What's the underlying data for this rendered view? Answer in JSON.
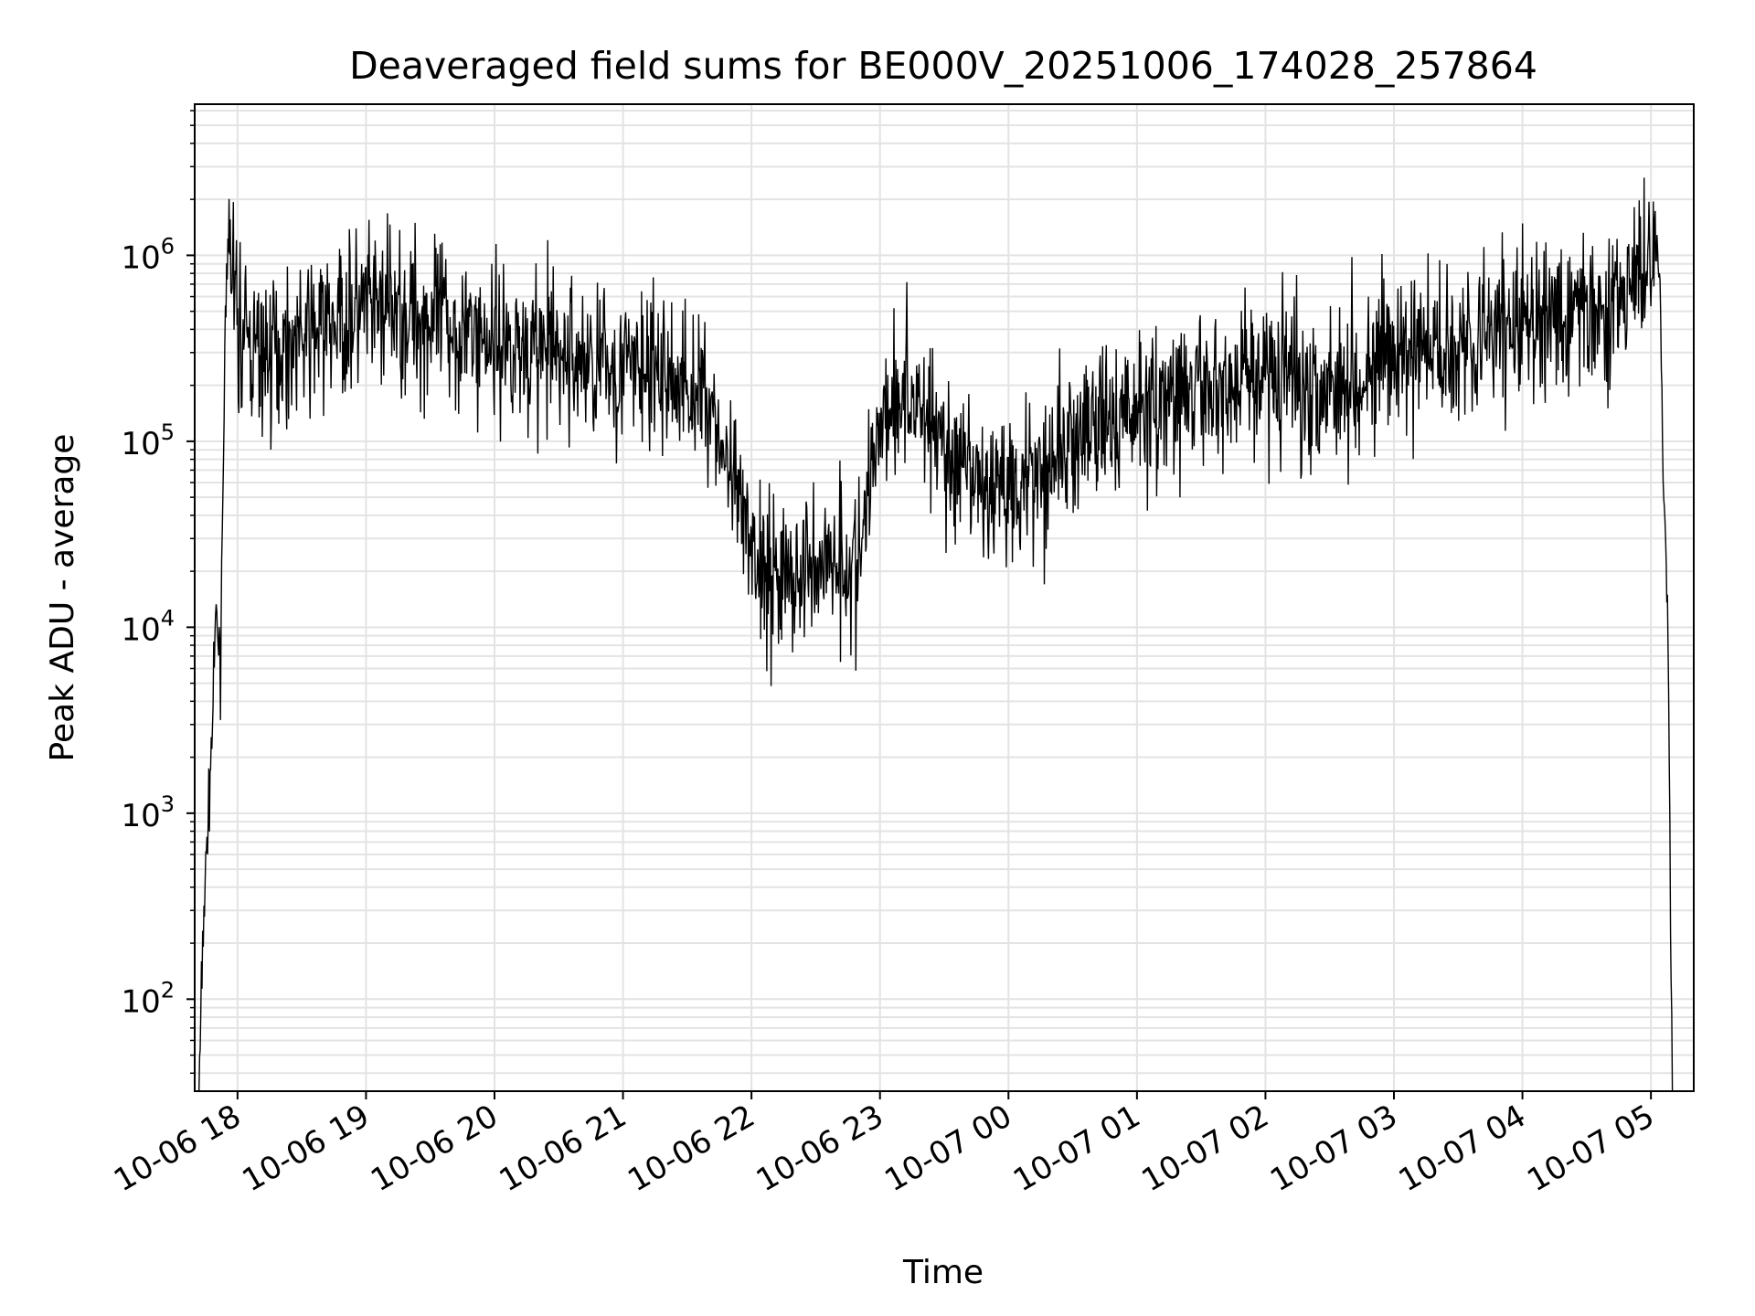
{
  "chart_data": {
    "type": "line",
    "title": "Deaveraged field sums for BE000V_20251006_174028_257864",
    "xlabel": "Time",
    "ylabel": "Peak ADU - average",
    "yscale": "log",
    "ylim": [
      32,
      6500000
    ],
    "xlim": [
      "2025-10-06 17:40",
      "2025-10-07 05:20"
    ],
    "grid": true,
    "line_color": "#000000",
    "grid_color": "#e3e3e3",
    "x_ticks": [
      {
        "label": "10-06 18",
        "time": "2025-10-06 18:00"
      },
      {
        "label": "10-06 19",
        "time": "2025-10-06 19:00"
      },
      {
        "label": "10-06 20",
        "time": "2025-10-06 20:00"
      },
      {
        "label": "10-06 21",
        "time": "2025-10-06 21:00"
      },
      {
        "label": "10-06 22",
        "time": "2025-10-06 22:00"
      },
      {
        "label": "10-06 23",
        "time": "2025-10-06 23:00"
      },
      {
        "label": "10-07 00",
        "time": "2025-10-07 00:00"
      },
      {
        "label": "10-07 01",
        "time": "2025-10-07 01:00"
      },
      {
        "label": "10-07 02",
        "time": "2025-10-07 02:00"
      },
      {
        "label": "10-07 03",
        "time": "2025-10-07 03:00"
      },
      {
        "label": "10-07 04",
        "time": "2025-10-07 04:00"
      },
      {
        "label": "10-07 05",
        "time": "2025-10-07 05:00"
      }
    ],
    "y_ticks": [
      {
        "value": 100,
        "base": "10",
        "exp": "2"
      },
      {
        "value": 1000,
        "base": "10",
        "exp": "3"
      },
      {
        "value": 10000,
        "base": "10",
        "exp": "4"
      },
      {
        "value": 100000,
        "base": "10",
        "exp": "5"
      },
      {
        "value": 1000000,
        "base": "10",
        "exp": "6"
      }
    ],
    "series": [
      {
        "x": [
          "2025-10-06 17:42",
          "2025-10-06 17:44",
          "2025-10-06 17:46",
          "2025-10-06 17:48",
          "2025-10-06 17:50",
          "2025-10-06 17:52",
          "2025-10-06 17:54",
          "2025-10-06 17:56",
          "2025-10-06 17:58",
          "2025-10-06 18:00",
          "2025-10-06 18:10",
          "2025-10-06 18:20",
          "2025-10-06 18:30",
          "2025-10-06 18:40",
          "2025-10-06 18:50",
          "2025-10-06 19:00",
          "2025-10-06 19:10",
          "2025-10-06 19:20",
          "2025-10-06 19:30",
          "2025-10-06 19:40",
          "2025-10-06 19:50",
          "2025-10-06 20:00",
          "2025-10-06 20:10",
          "2025-10-06 20:20",
          "2025-10-06 20:30",
          "2025-10-06 20:40",
          "2025-10-06 20:50",
          "2025-10-06 21:00",
          "2025-10-06 21:10",
          "2025-10-06 21:20",
          "2025-10-06 21:30",
          "2025-10-06 21:40",
          "2025-10-06 21:50",
          "2025-10-06 22:00",
          "2025-10-06 22:10",
          "2025-10-06 22:20",
          "2025-10-06 22:30",
          "2025-10-06 22:40",
          "2025-10-06 22:50",
          "2025-10-06 23:00",
          "2025-10-06 23:10",
          "2025-10-06 23:20",
          "2025-10-06 23:30",
          "2025-10-06 23:40",
          "2025-10-06 23:50",
          "2025-10-07 00:00",
          "2025-10-07 00:10",
          "2025-10-07 00:20",
          "2025-10-07 00:30",
          "2025-10-07 00:40",
          "2025-10-07 00:50",
          "2025-10-07 01:00",
          "2025-10-07 01:10",
          "2025-10-07 01:20",
          "2025-10-07 01:30",
          "2025-10-07 01:40",
          "2025-10-07 01:50",
          "2025-10-07 02:00",
          "2025-10-07 02:10",
          "2025-10-07 02:20",
          "2025-10-07 02:30",
          "2025-10-07 02:40",
          "2025-10-07 02:50",
          "2025-10-07 03:00",
          "2025-10-07 03:10",
          "2025-10-07 03:20",
          "2025-10-07 03:30",
          "2025-10-07 03:40",
          "2025-10-07 03:50",
          "2025-10-07 04:00",
          "2025-10-07 04:10",
          "2025-10-07 04:20",
          "2025-10-07 04:30",
          "2025-10-07 04:40",
          "2025-10-07 04:50",
          "2025-10-07 05:00",
          "2025-10-07 05:02",
          "2025-10-07 05:04",
          "2025-10-07 05:06",
          "2025-10-07 05:08",
          "2025-10-07 05:10"
        ],
        "y": [
          30,
          250,
          800,
          2500,
          12000,
          6000,
          300000,
          1200000,
          800000,
          400000,
          280000,
          320000,
          350000,
          400000,
          450000,
          500000,
          520000,
          480000,
          450000,
          420000,
          380000,
          350000,
          330000,
          310000,
          290000,
          270000,
          260000,
          250000,
          240000,
          220000,
          200000,
          180000,
          60000,
          25000,
          20000,
          18000,
          22000,
          25000,
          20000,
          150000,
          180000,
          160000,
          90000,
          60000,
          55000,
          60000,
          70000,
          80000,
          100000,
          110000,
          130000,
          150000,
          160000,
          170000,
          180000,
          200000,
          220000,
          250000,
          230000,
          200000,
          210000,
          230000,
          250000,
          270000,
          300000,
          320000,
          350000,
          380000,
          400000,
          420000,
          450000,
          470000,
          500000,
          550000,
          650000,
          900000,
          1200000,
          700000,
          60000,
          8000,
          30
        ]
      }
    ]
  }
}
